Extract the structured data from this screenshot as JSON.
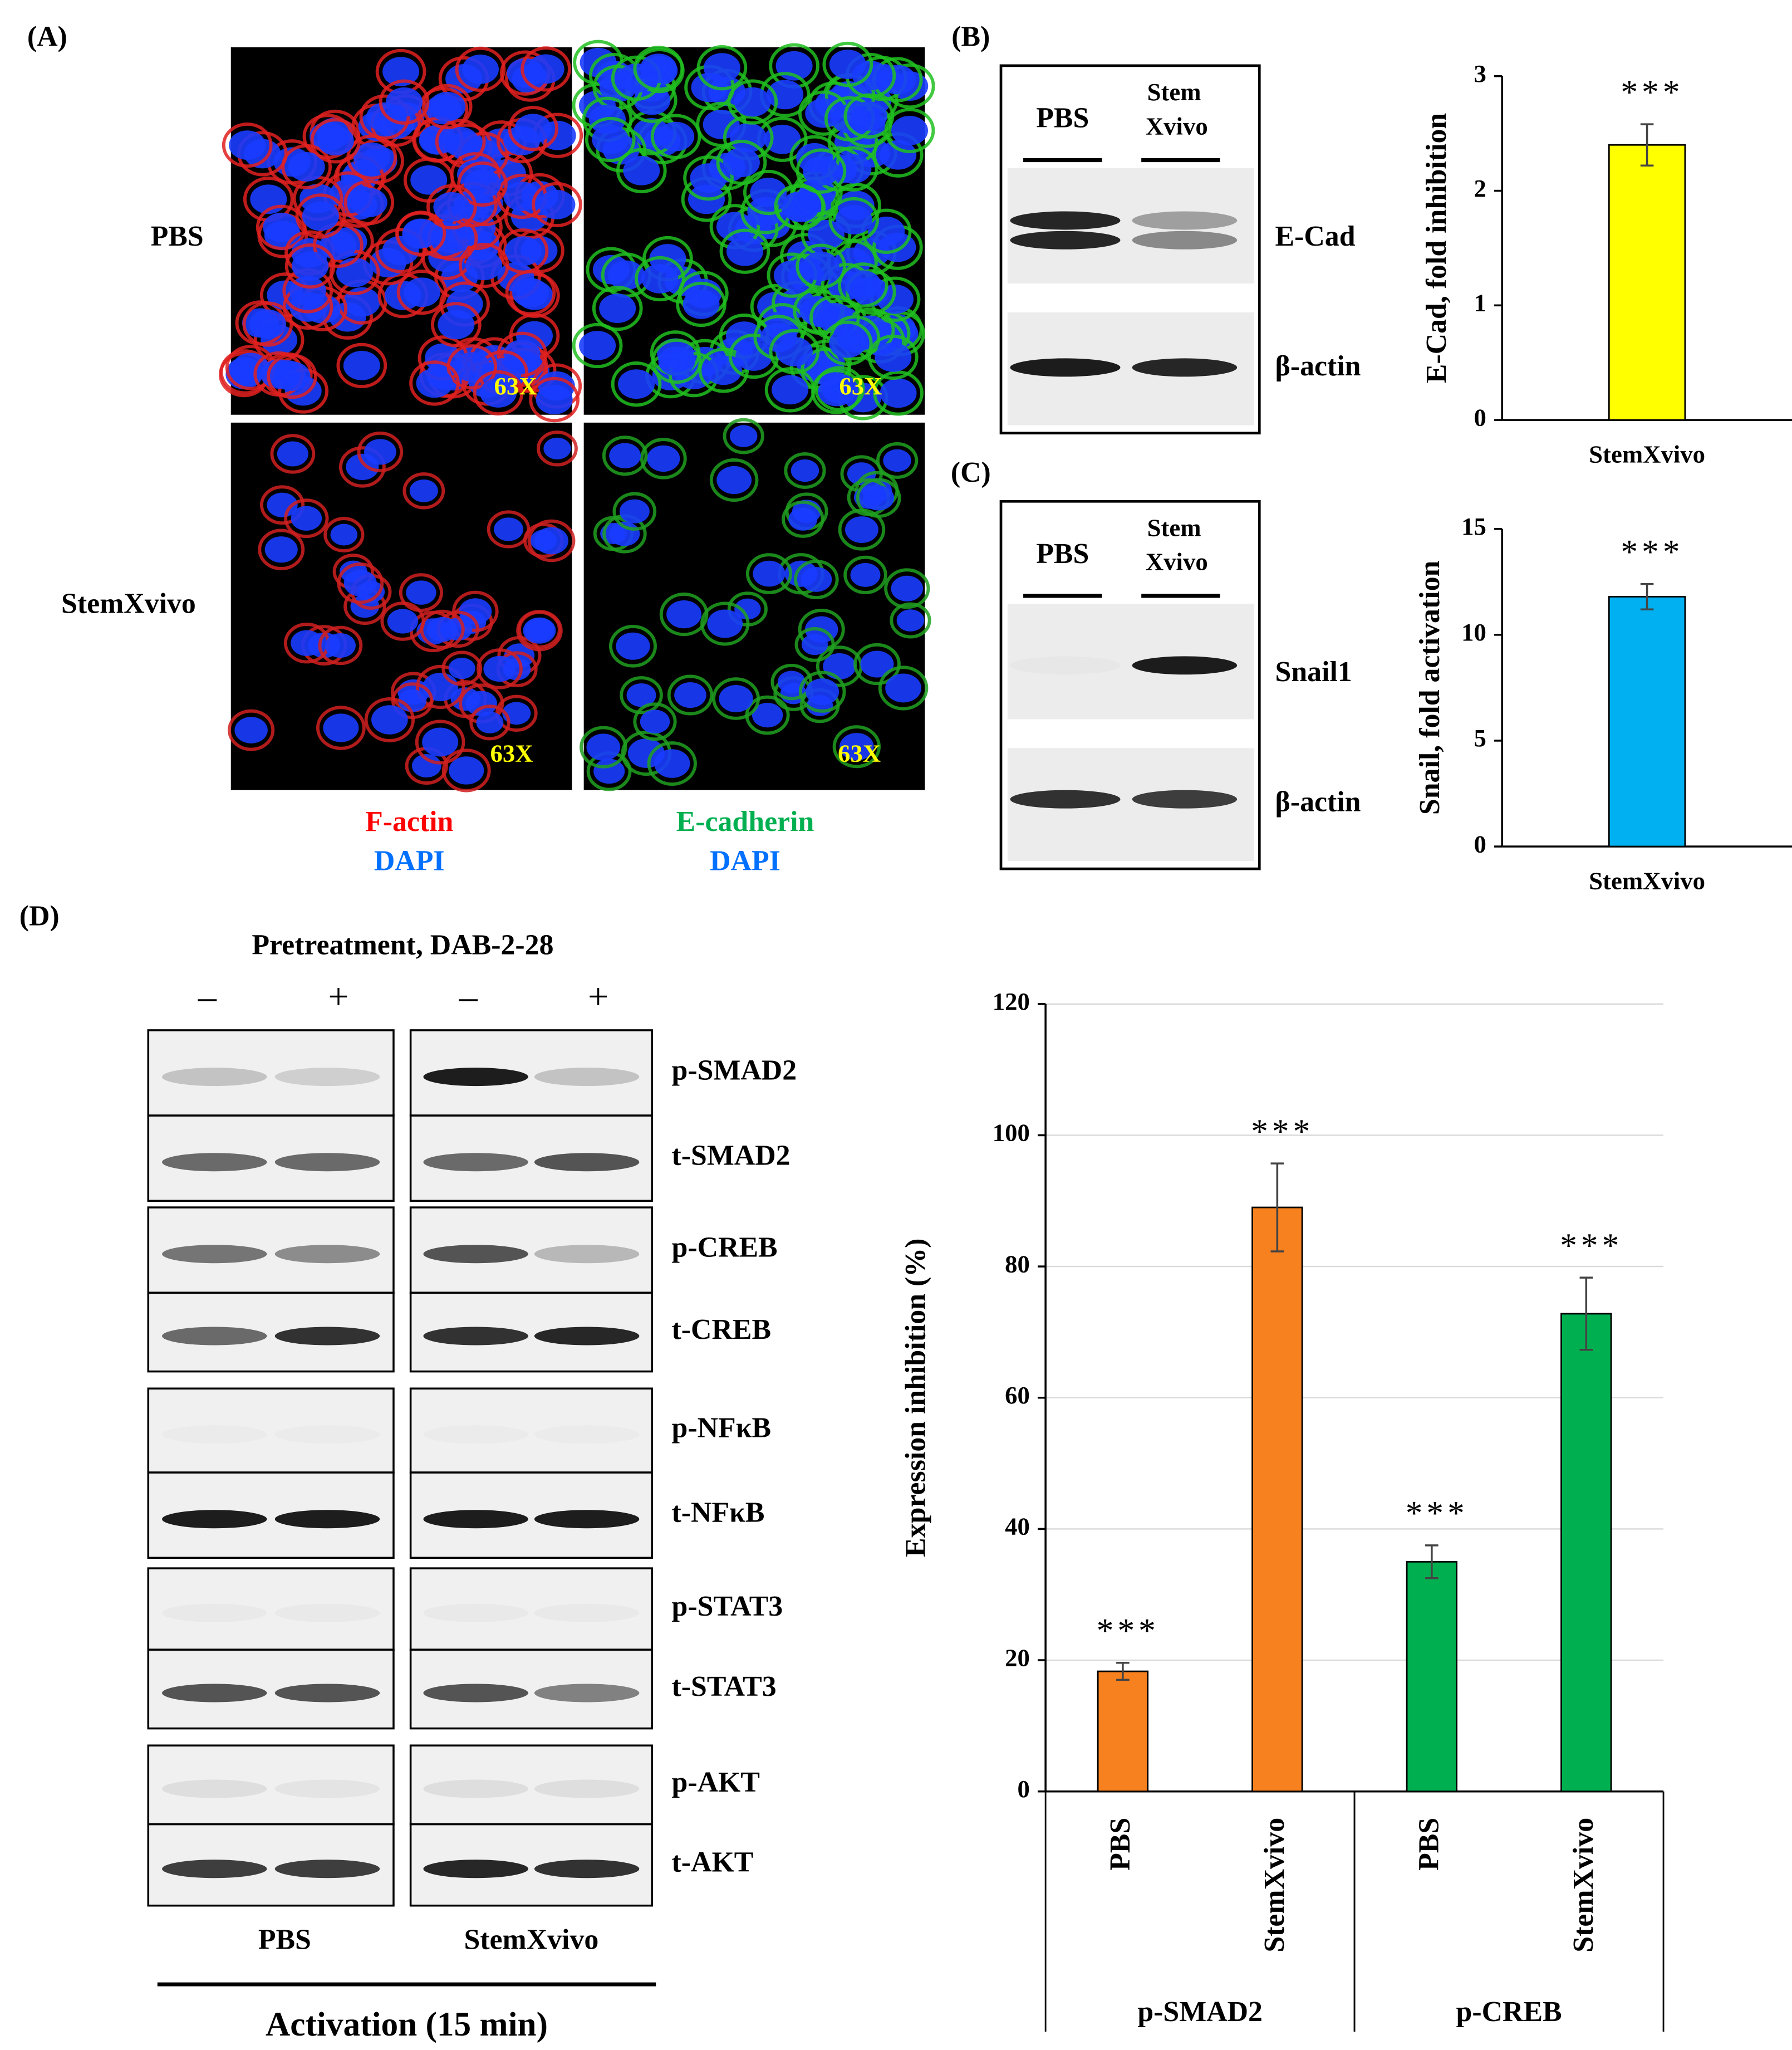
{
  "panel_a": {
    "label": "(A)",
    "rows": [
      "PBS",
      "StemXvivo"
    ],
    "magnification": "63X",
    "stains": [
      [
        "F-actin",
        "DAPI"
      ],
      [
        "E-cadherin",
        "DAPI"
      ]
    ]
  },
  "panel_b": {
    "label": "(B)",
    "lanes": [
      [
        "PBS"
      ],
      [
        "Stem",
        "Xvivo"
      ]
    ],
    "blots": [
      "E-Cad",
      "β-actin"
    ]
  },
  "panel_c": {
    "label": "(C)",
    "lanes": [
      [
        "PBS"
      ],
      [
        "Stem",
        "Xvivo"
      ]
    ],
    "blots": [
      "Snail1",
      "β-actin"
    ]
  },
  "panel_d": {
    "label": "(D)",
    "pretreatment": "Pretreatment, DAB-2-28",
    "signs": [
      "–",
      "+",
      "–",
      "+"
    ],
    "blots": [
      "p-SMAD2",
      "t-SMAD2",
      "p-CREB",
      "t-CREB",
      "p-NFκB",
      "t-NFκB",
      "p-STAT3",
      "t-STAT3",
      "p-AKT",
      "t-AKT"
    ],
    "lanes": [
      "PBS",
      "StemXvivo"
    ],
    "activation": "Activation (15 min)"
  },
  "chart_data": [
    {
      "type": "bar",
      "ylabel": "E-Cad, fold  inhibition",
      "categories": [
        "StemXvivo"
      ],
      "values": [
        2.4
      ],
      "errors": [
        0.18
      ],
      "significance": [
        "***"
      ],
      "color": "#ffff00",
      "ylim": [
        0,
        3
      ],
      "yticks": [
        0,
        1,
        2,
        3
      ],
      "grid": false
    },
    {
      "type": "bar",
      "ylabel": "Snail, fold activation",
      "categories": [
        "StemXvivo"
      ],
      "values": [
        11.8
      ],
      "errors": [
        0.6
      ],
      "significance": [
        "***"
      ],
      "color": "#00b0f0",
      "ylim": [
        0,
        15
      ],
      "yticks": [
        0,
        5,
        10,
        15
      ],
      "grid": false
    },
    {
      "type": "bar",
      "ylabel": "Expression inhibition (%)",
      "categories": [
        "PBS",
        "StemXvivo"
      ],
      "series": [
        {
          "name": "p-SMAD2",
          "color": "#f7801f",
          "values": [
            18.3,
            89
          ],
          "errors": [
            1.3,
            6.7
          ],
          "significance": [
            "***",
            "***"
          ]
        },
        {
          "name": "p-CREB",
          "color": "#00b050",
          "values": [
            35,
            72.8
          ],
          "errors": [
            2.5,
            5.5
          ],
          "significance": [
            "***",
            "***"
          ]
        }
      ],
      "ylim": [
        0,
        120
      ],
      "yticks": [
        0,
        20,
        40,
        60,
        80,
        100,
        120
      ],
      "grid": true
    }
  ]
}
